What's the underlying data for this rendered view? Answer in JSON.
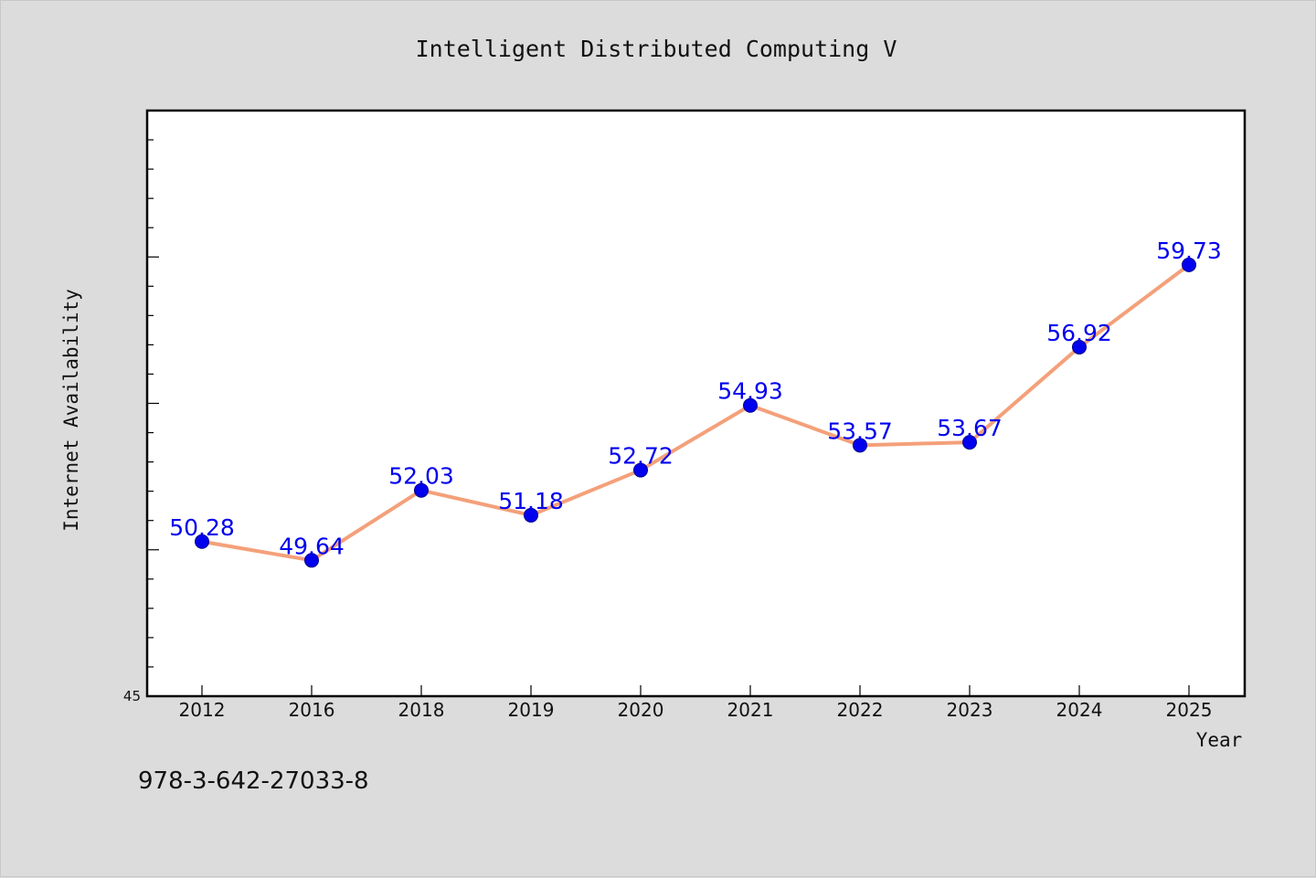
{
  "chart_data": {
    "type": "line",
    "title": "Intelligent Distributed Computing V",
    "xlabel": "Year",
    "ylabel": "Internet Availability",
    "categories": [
      "2012",
      "2016",
      "2018",
      "2019",
      "2020",
      "2021",
      "2022",
      "2023",
      "2024",
      "2025"
    ],
    "series": [
      {
        "values": [
          50.28,
          49.64,
          52.03,
          51.18,
          52.72,
          54.93,
          53.57,
          53.67,
          56.92,
          59.73
        ],
        "labels": [
          "50.28",
          "49.64",
          "52.03",
          "51.18",
          "52.72",
          "54.93",
          "53.57",
          "53.67",
          "56.92",
          "59.73"
        ],
        "line_color": "#f4a07a",
        "marker_color": "#0000ee",
        "label_color": "#0000ee"
      }
    ],
    "ylim": [
      45,
      65
    ],
    "y_tick_labels": [
      "45"
    ],
    "y_major_step": 5,
    "y_minor_step": 1,
    "grid": false,
    "legend": "none"
  },
  "footnote": "978-3-642-27033-8"
}
